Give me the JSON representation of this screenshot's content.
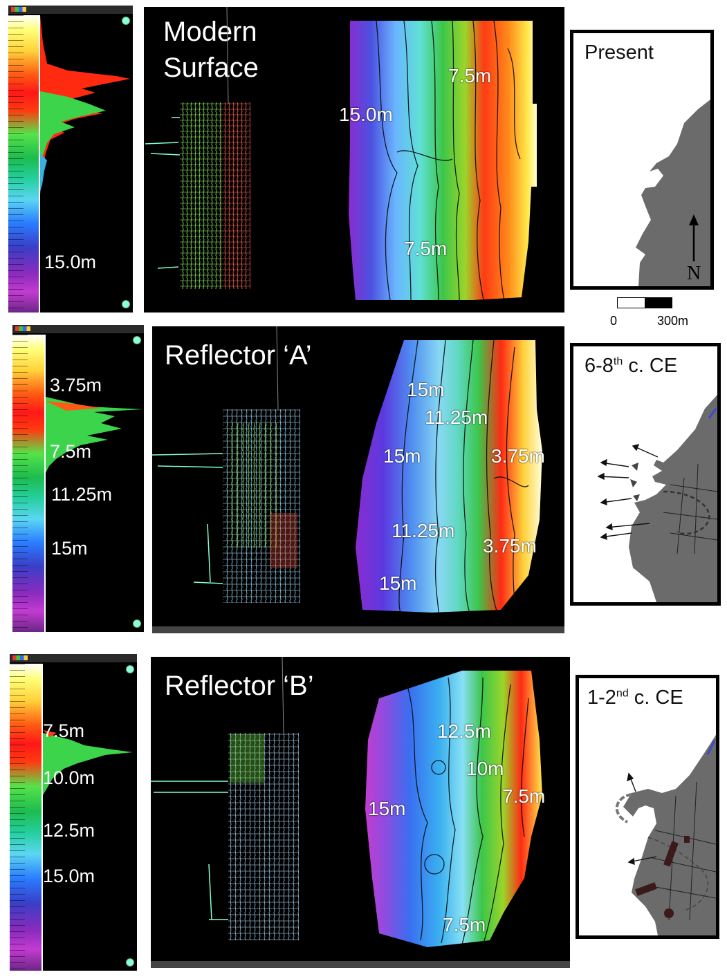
{
  "rows": [
    {
      "colorbar_labels": [
        "15.0m"
      ],
      "title_lines": [
        "Modern",
        "Surface"
      ],
      "map_labels": [
        "7.5m",
        "15.0m",
        "7.5m"
      ],
      "box_title": "Present",
      "box_title_sup": "",
      "box_title_rest": ""
    },
    {
      "colorbar_labels": [
        "3.75m",
        "7.5m",
        "11.25m",
        "15m"
      ],
      "title_lines": [
        "Reflector ‘A’"
      ],
      "map_labels": [
        "15m",
        "11.25m",
        "15m",
        "3.75m",
        "11.25m",
        "3.75m",
        "15m"
      ],
      "box_title": "6-8",
      "box_title_sup": "th",
      "box_title_rest": " c. CE"
    },
    {
      "colorbar_labels": [
        "7.5m",
        "10.0m",
        "12.5m",
        "15.0m"
      ],
      "title_lines": [
        "Reflector ‘B’"
      ],
      "map_labels": [
        "12.5m",
        "10m",
        "7.5m",
        "15m",
        "7.5m"
      ],
      "box_title": "1-2",
      "box_title_sup": "nd",
      "box_title_rest": " c. CE"
    }
  ],
  "north_label": "N",
  "scale_bar": {
    "start": "0",
    "end": "300m"
  },
  "colors": {
    "land": "#6b6b6b",
    "border": "#000000",
    "panel_bg": "#000000"
  }
}
